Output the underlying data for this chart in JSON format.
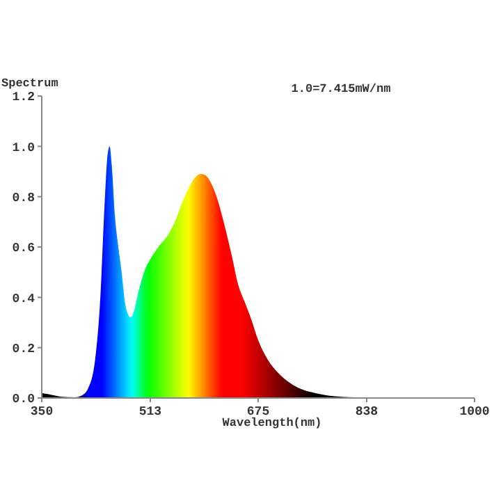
{
  "chart_data": {
    "type": "area",
    "ylabel": "Spectrum",
    "xlabel": "Wavelength(nm)",
    "annotations": [
      "1.0=7.415mW/nm"
    ],
    "xlim": [
      350,
      1000
    ],
    "xticks": [
      350,
      513,
      675,
      838,
      1000
    ],
    "ylim": [
      0,
      1.2
    ],
    "yticks": [
      {
        "value": 0,
        "label": "0.0"
      },
      0.2,
      0.4,
      0.6,
      0.8,
      {
        "value": 1,
        "label": "1.0"
      },
      1.2
    ],
    "grid": false,
    "series": [
      {
        "x": [
          350,
          360,
          370,
          380,
          400,
          410,
          420,
          430,
          438,
          444,
          449,
          452,
          455,
          460,
          465,
          470,
          475,
          480,
          483,
          488,
          495,
          505,
          515,
          525,
          540,
          550,
          560,
          570,
          580,
          590,
          598,
          605,
          615,
          625,
          635,
          645,
          655,
          665,
          675,
          690,
          705,
          720,
          740,
          760,
          780,
          800,
          840,
          900,
          1000
        ],
        "values": [
          0.02,
          0.015,
          0.01,
          0.005,
          0.003,
          0.01,
          0.04,
          0.15,
          0.4,
          0.75,
          0.97,
          1.0,
          0.93,
          0.72,
          0.6,
          0.5,
          0.38,
          0.33,
          0.32,
          0.34,
          0.42,
          0.51,
          0.56,
          0.6,
          0.65,
          0.7,
          0.77,
          0.83,
          0.875,
          0.89,
          0.88,
          0.85,
          0.78,
          0.68,
          0.57,
          0.45,
          0.38,
          0.31,
          0.23,
          0.15,
          0.1,
          0.065,
          0.035,
          0.02,
          0.01,
          0.005,
          0.002,
          0.001,
          0
        ]
      }
    ]
  }
}
